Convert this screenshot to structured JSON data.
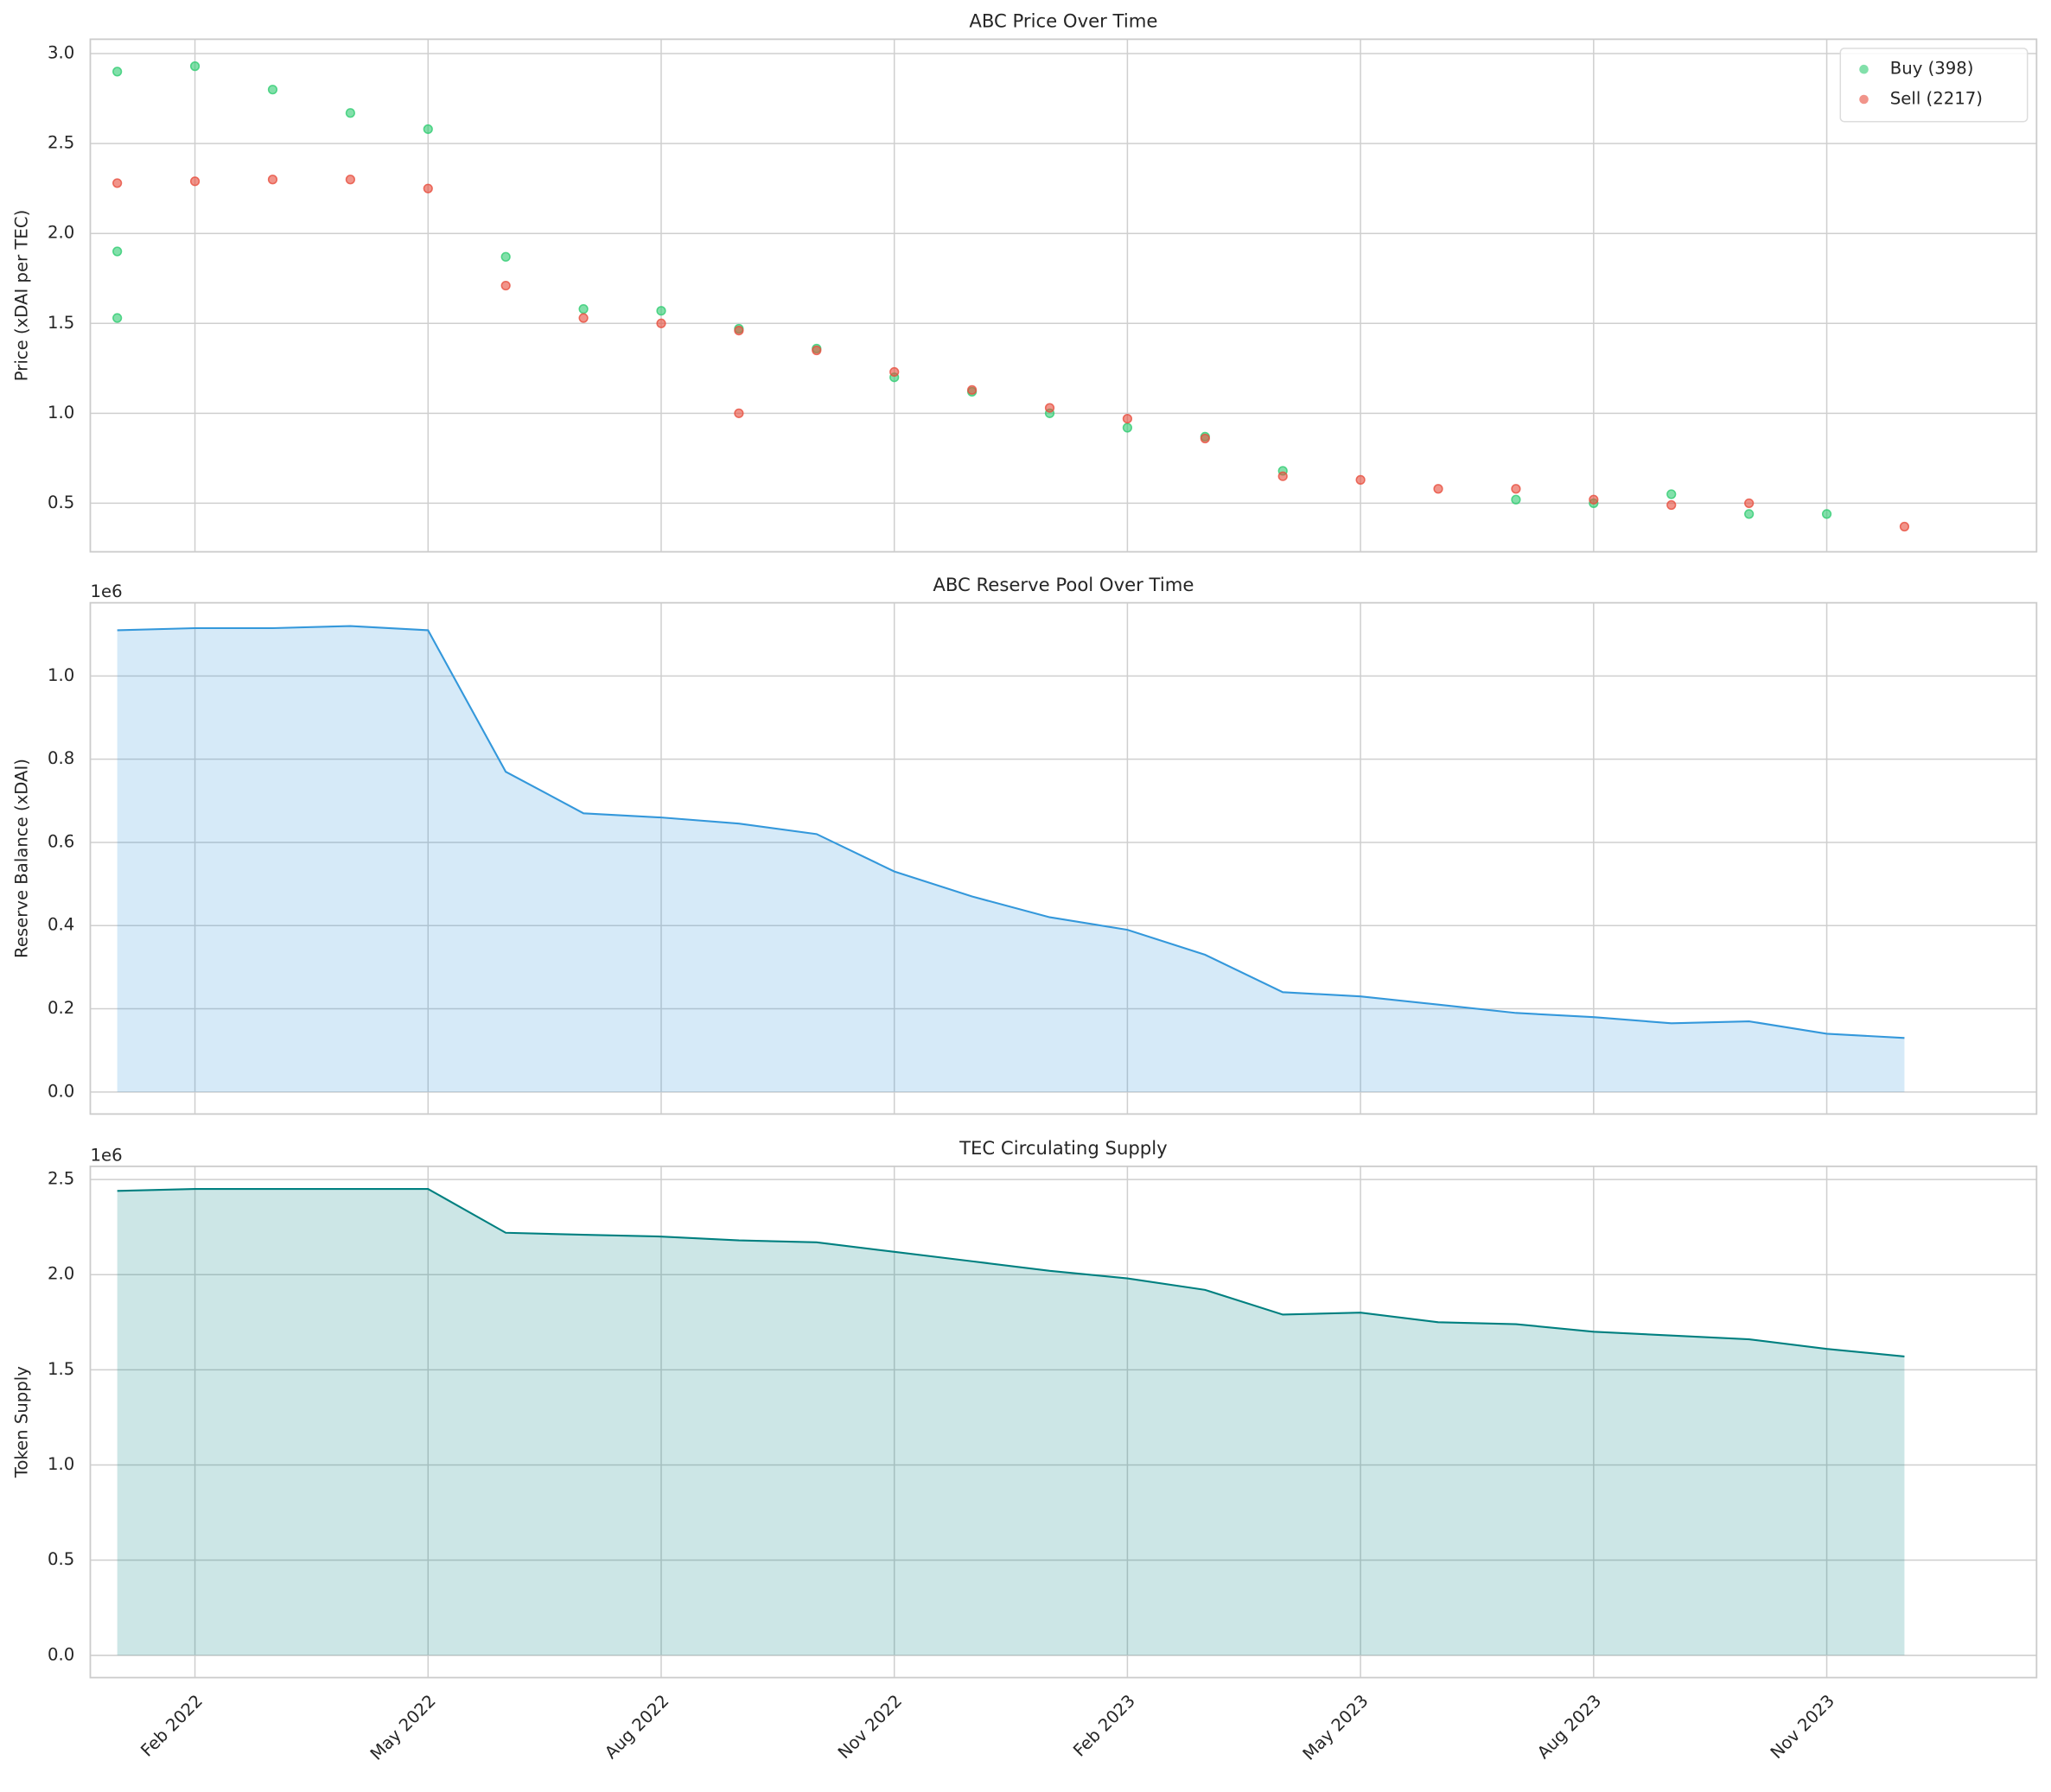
{
  "chart_data": [
    {
      "type": "scatter",
      "title": "ABC Price Over Time",
      "ylabel": "Price (xDAI per TEC)",
      "xlim": [
        "2022-01",
        "2023-12"
      ],
      "ylim": [
        0.23,
        3.08
      ],
      "yticks": [
        0.5,
        {
          "value": 1,
          "label": "1.0"
        },
        1.5,
        {
          "value": 2,
          "label": "2.0"
        },
        2.5,
        {
          "value": 3,
          "label": "3.0"
        }
      ],
      "grid": true,
      "legend": "upper right",
      "series": [
        {
          "name": "Buy (398)",
          "color": "#2ecc71",
          "x": [
            "2022-01",
            "2022-01",
            "2022-01",
            "2022-02",
            "2022-03",
            "2022-04",
            "2022-05",
            "2022-06",
            "2022-07",
            "2022-08",
            "2022-09",
            "2022-10",
            "2022-11",
            "2022-12",
            "2023-01",
            "2023-02",
            "2023-03",
            "2023-04",
            "2023-07",
            "2023-08",
            "2023-09",
            "2023-10",
            "2023-11"
          ],
          "values": [
            1.9,
            2.9,
            1.53,
            2.93,
            2.8,
            2.67,
            2.58,
            1.87,
            1.58,
            1.57,
            1.47,
            1.36,
            1.2,
            1.12,
            1.0,
            0.92,
            0.87,
            0.68,
            0.52,
            0.5,
            0.55,
            0.44,
            0.44
          ]
        },
        {
          "name": "Sell (2217)",
          "color": "#e74c3c",
          "x": [
            "2022-01",
            "2022-02",
            "2022-03",
            "2022-04",
            "2022-05",
            "2022-06",
            "2022-07",
            "2022-08",
            "2022-09",
            "2022-09",
            "2022-10",
            "2022-11",
            "2022-12",
            "2023-01",
            "2023-02",
            "2023-03",
            "2023-04",
            "2023-05",
            "2023-06",
            "2023-07",
            "2023-08",
            "2023-09",
            "2023-10",
            "2023-12"
          ],
          "values": [
            2.28,
            2.29,
            2.3,
            2.3,
            2.25,
            1.71,
            1.53,
            1.5,
            1.46,
            1.0,
            1.35,
            1.23,
            1.13,
            1.03,
            0.97,
            0.86,
            0.65,
            0.63,
            0.58,
            0.58,
            0.52,
            0.49,
            0.5,
            0.37
          ]
        }
      ]
    },
    {
      "type": "area",
      "title": "ABC Reserve Pool Over Time",
      "ylabel": "Reserve Balance (xDAI)",
      "offset_label": "1e6",
      "xlim": [
        "2022-01",
        "2023-12"
      ],
      "ylim": [
        -0.053,
        1.176
      ],
      "yticks": [
        {
          "value": 0,
          "label": "0.0"
        },
        0.2,
        0.4,
        0.6,
        0.8,
        {
          "value": 1,
          "label": "1.0"
        }
      ],
      "grid": true,
      "color": "#3498db",
      "x": [
        "2022-01",
        "2022-02",
        "2022-03",
        "2022-04",
        "2022-05",
        "2022-06",
        "2022-07",
        "2022-08",
        "2022-09",
        "2022-10",
        "2022-11",
        "2022-12",
        "2023-01",
        "2023-02",
        "2023-03",
        "2023-04",
        "2023-05",
        "2023-06",
        "2023-07",
        "2023-08",
        "2023-09",
        "2023-10",
        "2023-11",
        "2023-12"
      ],
      "values": [
        1.11,
        1.115,
        1.115,
        1.12,
        1.11,
        0.77,
        0.67,
        0.66,
        0.645,
        0.62,
        0.53,
        0.47,
        0.42,
        0.39,
        0.33,
        0.24,
        0.23,
        0.21,
        0.19,
        0.18,
        0.165,
        0.17,
        0.14,
        0.13
      ]
    },
    {
      "type": "area",
      "title": "TEC Circulating Supply",
      "ylabel": "Token Supply",
      "offset_label": "1e6",
      "xlim": [
        "2022-01",
        "2023-12"
      ],
      "ylim": [
        -0.117,
        2.569
      ],
      "yticks": [
        {
          "value": 0,
          "label": "0.0"
        },
        0.5,
        {
          "value": 1,
          "label": "1.0"
        },
        1.5,
        {
          "value": 2,
          "label": "2.0"
        },
        2.5
      ],
      "xticks": [
        {
          "value": "2022-02",
          "label": "Feb 2022"
        },
        {
          "value": "2022-05",
          "label": "May 2022"
        },
        {
          "value": "2022-08",
          "label": "Aug 2022"
        },
        {
          "value": "2022-11",
          "label": "Nov 2022"
        },
        {
          "value": "2023-02",
          "label": "Feb 2023"
        },
        {
          "value": "2023-05",
          "label": "May 2023"
        },
        {
          "value": "2023-08",
          "label": "Aug 2023"
        },
        {
          "value": "2023-11",
          "label": "Nov 2023"
        }
      ],
      "grid": true,
      "color": "#008080",
      "x": [
        "2022-01",
        "2022-02",
        "2022-03",
        "2022-04",
        "2022-05",
        "2022-06",
        "2022-07",
        "2022-08",
        "2022-09",
        "2022-10",
        "2022-11",
        "2022-12",
        "2023-01",
        "2023-02",
        "2023-03",
        "2023-04",
        "2023-05",
        "2023-06",
        "2023-07",
        "2023-08",
        "2023-09",
        "2023-10",
        "2023-11",
        "2023-12"
      ],
      "values": [
        2.44,
        2.45,
        2.45,
        2.45,
        2.45,
        2.22,
        2.21,
        2.2,
        2.18,
        2.17,
        2.12,
        2.07,
        2.02,
        1.98,
        1.92,
        1.79,
        1.8,
        1.75,
        1.74,
        1.7,
        1.68,
        1.66,
        1.61,
        1.57
      ]
    }
  ]
}
